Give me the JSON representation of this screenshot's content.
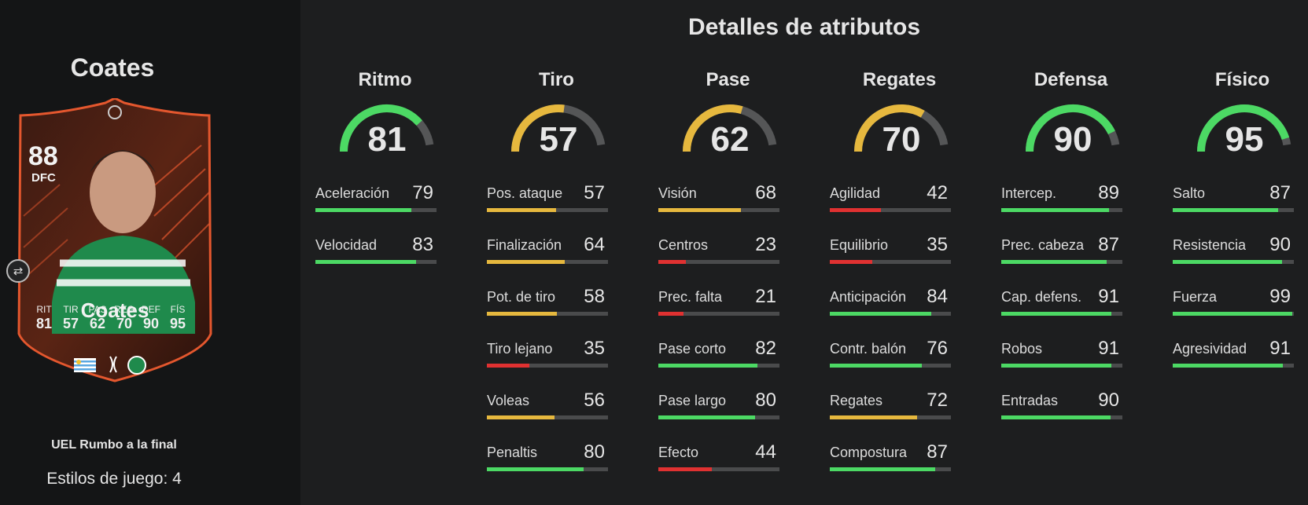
{
  "player": {
    "name_header": "Coates",
    "card": {
      "rating": "88",
      "position": "DFC",
      "name": "Coates",
      "stats": [
        {
          "label": "RIT",
          "value": "81"
        },
        {
          "label": "TIR",
          "value": "57"
        },
        {
          "label": "PAS",
          "value": "62"
        },
        {
          "label": "REG",
          "value": "70"
        },
        {
          "label": "DEF",
          "value": "90"
        },
        {
          "label": "FÍS",
          "value": "95"
        }
      ]
    },
    "version": "UEL Rumbo a la final",
    "playstyles": "Estilos de juego: 4"
  },
  "colors": {
    "high": "#4cd964",
    "mid": "#e6b83e",
    "low": "#e03131",
    "track": "#555657",
    "card_orange": "#e4572e"
  },
  "section_title": "Detalles de atributos",
  "categories": [
    {
      "name": "Ritmo",
      "value": 81,
      "attributes": [
        {
          "name": "Aceleración",
          "value": 79
        },
        {
          "name": "Velocidad",
          "value": 83
        }
      ]
    },
    {
      "name": "Tiro",
      "value": 57,
      "attributes": [
        {
          "name": "Pos. ataque",
          "value": 57
        },
        {
          "name": "Finalización",
          "value": 64
        },
        {
          "name": "Pot. de tiro",
          "value": 58
        },
        {
          "name": "Tiro lejano",
          "value": 35
        },
        {
          "name": "Voleas",
          "value": 56
        },
        {
          "name": "Penaltis",
          "value": 80
        }
      ]
    },
    {
      "name": "Pase",
      "value": 62,
      "attributes": [
        {
          "name": "Visión",
          "value": 68
        },
        {
          "name": "Centros",
          "value": 23
        },
        {
          "name": "Prec. falta",
          "value": 21
        },
        {
          "name": "Pase corto",
          "value": 82
        },
        {
          "name": "Pase largo",
          "value": 80
        },
        {
          "name": "Efecto",
          "value": 44
        }
      ]
    },
    {
      "name": "Regates",
      "value": 70,
      "attributes": [
        {
          "name": "Agilidad",
          "value": 42
        },
        {
          "name": "Equilibrio",
          "value": 35
        },
        {
          "name": "Anticipación",
          "value": 84
        },
        {
          "name": "Contr. balón",
          "value": 76
        },
        {
          "name": "Regates",
          "value": 72
        },
        {
          "name": "Compostura",
          "value": 87
        }
      ]
    },
    {
      "name": "Defensa",
      "value": 90,
      "attributes": [
        {
          "name": "Intercep.",
          "value": 89
        },
        {
          "name": "Prec. cabeza",
          "value": 87
        },
        {
          "name": "Cap. defens.",
          "value": 91
        },
        {
          "name": "Robos",
          "value": 91
        },
        {
          "name": "Entradas",
          "value": 90
        }
      ]
    },
    {
      "name": "Físico",
      "value": 95,
      "attributes": [
        {
          "name": "Salto",
          "value": 87
        },
        {
          "name": "Resistencia",
          "value": 90
        },
        {
          "name": "Fuerza",
          "value": 99
        },
        {
          "name": "Agresividad",
          "value": 91
        }
      ]
    }
  ]
}
